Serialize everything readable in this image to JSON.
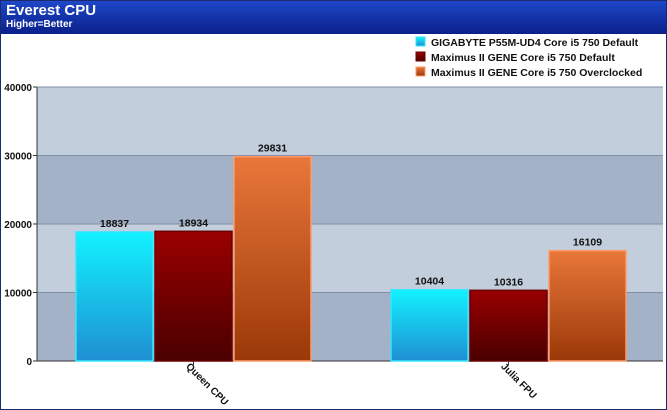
{
  "header": {
    "title": "Everest CPU",
    "subtitle": "Higher=Better"
  },
  "colors": {
    "header_bg": "#0a2aa0",
    "band_light": "#c3cedd",
    "band_dark": "#a4b2c8"
  },
  "chart_data": {
    "type": "bar",
    "title": "Everest CPU",
    "subtitle": "Higher=Better",
    "categories": [
      "Queen CPU",
      "Julia FPU"
    ],
    "series": [
      {
        "name": "GIGABYTE P55M-UD4 Core i5 750 Default",
        "values": [
          18837,
          10404
        ],
        "color_top": "#12f2ff",
        "color_bottom": "#1f8fd2",
        "border": "#34e6ff"
      },
      {
        "name": "Maximus II GENE Core i5 750 Default",
        "values": [
          18934,
          10316
        ],
        "color_top": "#9a0000",
        "color_bottom": "#4a0000",
        "border": "#6a0000"
      },
      {
        "name": "Maximus II GENE Core i5 750 Overclocked",
        "values": [
          29831,
          16109
        ],
        "color_top": "#e9773a",
        "color_bottom": "#9a3808",
        "border": "#ff9a6a"
      }
    ],
    "yticks": [
      0,
      10000,
      20000,
      30000,
      40000
    ],
    "ylim": [
      0,
      40000
    ],
    "legend_position": "top-right",
    "grid": true
  }
}
